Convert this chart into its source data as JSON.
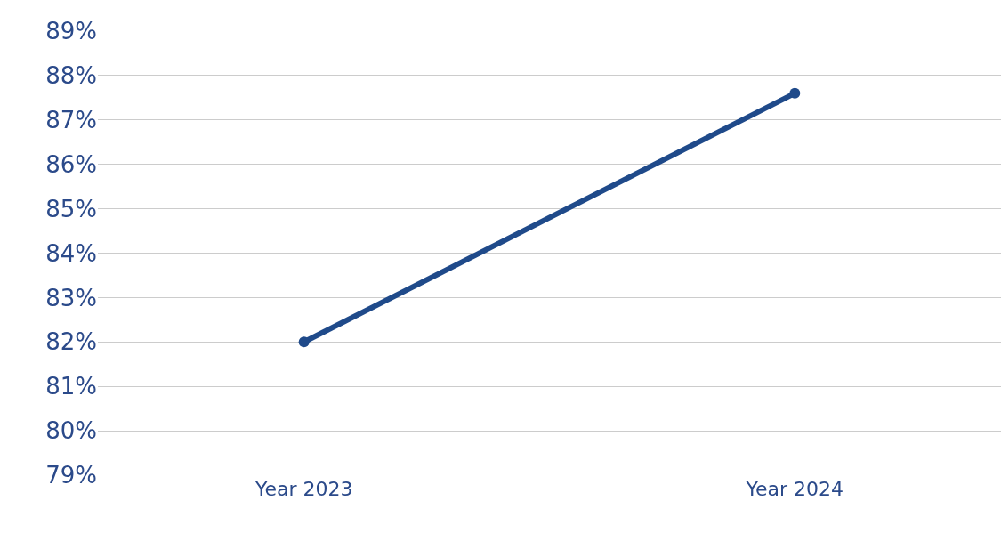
{
  "chart_data": {
    "type": "line",
    "categories": [
      "Year 2023",
      "Year 2024"
    ],
    "series": [
      {
        "color": "#1f4a8a",
        "values": [
          82,
          87.6
        ]
      }
    ],
    "ylim": [
      79,
      89
    ],
    "yticks": [
      {
        "value": 79,
        "label": "79%"
      },
      {
        "value": 80,
        "label": "80%"
      },
      {
        "value": 81,
        "label": "81%"
      },
      {
        "value": 82,
        "label": "82%"
      },
      {
        "value": 83,
        "label": "83%"
      },
      {
        "value": 84,
        "label": "84%"
      },
      {
        "value": 85,
        "label": "85%"
      },
      {
        "value": 86,
        "label": "86%"
      },
      {
        "value": 87,
        "label": "87%"
      },
      {
        "value": 88,
        "label": "88%"
      },
      {
        "value": 89,
        "label": "89%"
      }
    ],
    "grid": "y",
    "marker": "circle",
    "line_style": "solid"
  }
}
